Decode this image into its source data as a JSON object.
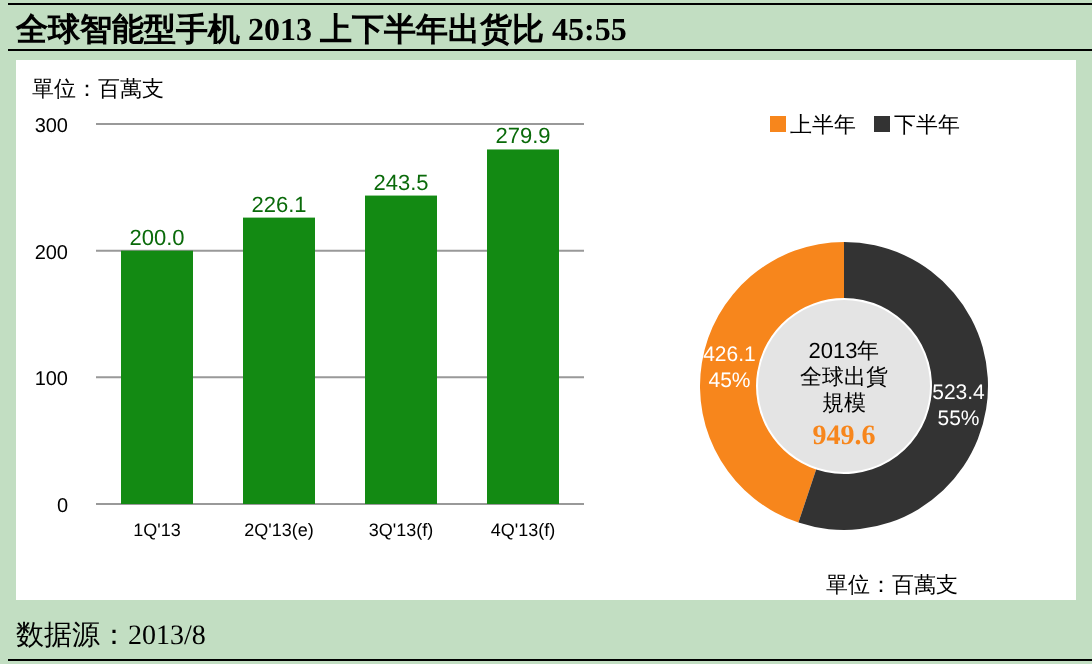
{
  "chart_data": [
    {
      "type": "bar",
      "title": "全球智能型手机 2013 上下半年出货比 45:55",
      "ylabel": "單位：百萬支",
      "categories": [
        "1Q'13",
        "2Q'13(e)",
        "3Q'13(f)",
        "4Q'13(f)"
      ],
      "values": [
        200.0,
        226.1,
        243.5,
        279.9
      ],
      "value_labels": [
        "200.0",
        "226.1",
        "243.5",
        "279.9"
      ],
      "color": "#138a13",
      "ylim": [
        0,
        300
      ],
      "yticks": [
        0,
        100,
        200,
        300
      ],
      "grid": "y",
      "annotations": [
        "数据源：2013/8"
      ]
    },
    {
      "type": "donut",
      "categories": [
        "上半年",
        "下半年"
      ],
      "values": [
        426.1,
        523.4
      ],
      "colors": [
        "#f7861c",
        "#333333"
      ],
      "value_labels": [
        "426.1\n45%",
        "523.4\n55%"
      ],
      "legend": "top",
      "annotations": [
        "2013年",
        "全球出貨",
        "規模",
        "949.6",
        "單位：百萬支"
      ]
    }
  ]
}
